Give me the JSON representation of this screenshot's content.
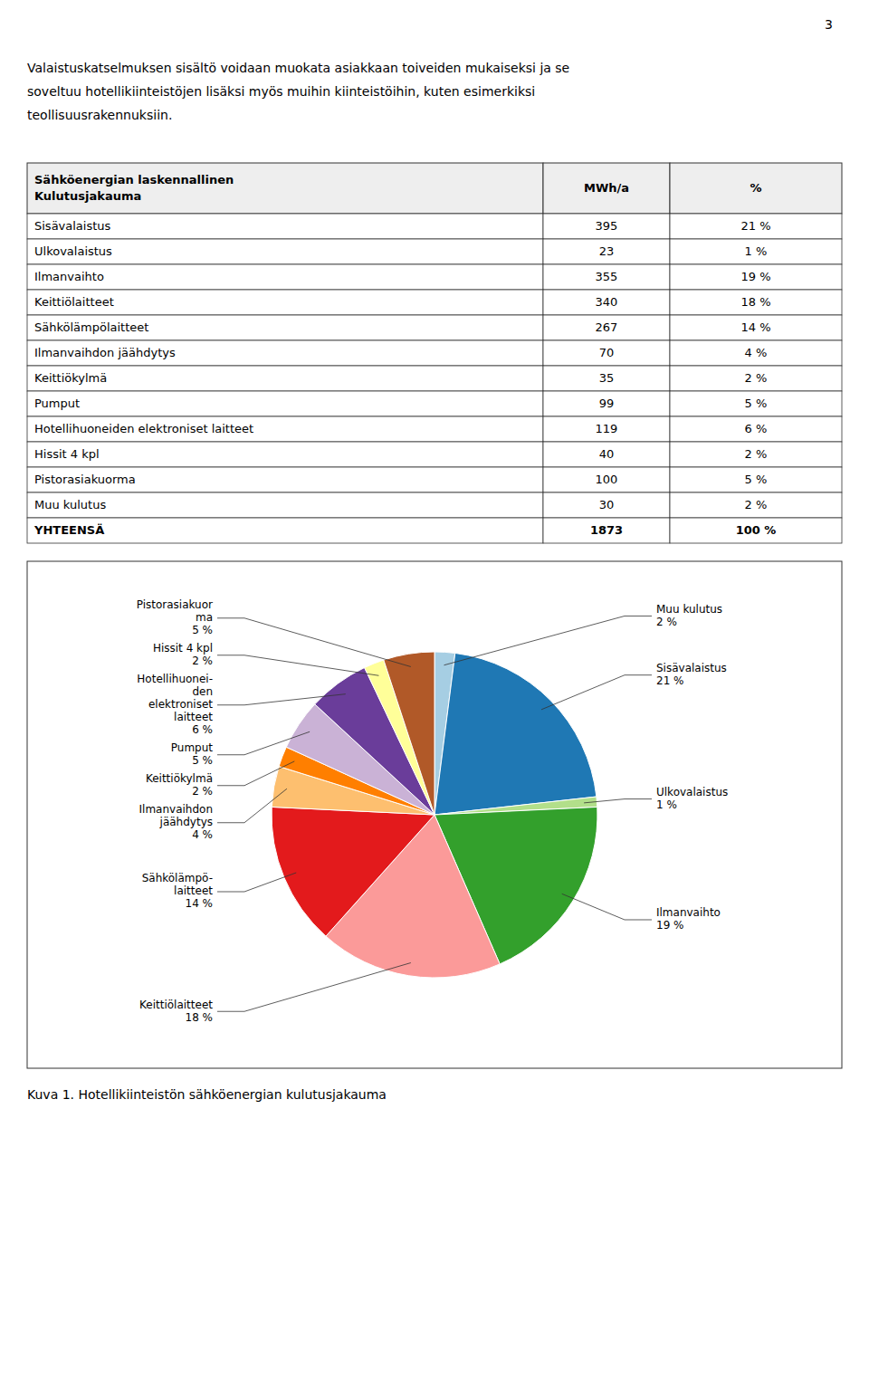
{
  "page_number": "3",
  "paragraph": [
    "Valaistuskatselmuksen sisältö voidaan muokata asiakkaan toiveiden mukaiseksi ja se",
    "soveltuu hotellikiinteistöjen lisäksi myös muihin kiinteistöihin, kuten esimerkiksi",
    "teollisuusrakennuksiin."
  ],
  "chart_data": [
    {
      "type": "table",
      "columns": [
        "Sähköenergian laskennallinen\nKulutusjakauma",
        "MWh/a",
        "%"
      ],
      "rows": [
        [
          "Sisävalaistus",
          "395",
          "21 %"
        ],
        [
          "Ulkovalaistus",
          "23",
          "1 %"
        ],
        [
          "Ilmanvaihto",
          "355",
          "19 %"
        ],
        [
          "Keittiölaitteet",
          "340",
          "18 %"
        ],
        [
          "Sähkölämpölaitteet",
          "267",
          "14 %"
        ],
        [
          "Ilmanvaihdon jäähdytys",
          "70",
          "4 %"
        ],
        [
          "Keittiökylmä",
          "35",
          "2 %"
        ],
        [
          "Pumput",
          "99",
          "5 %"
        ],
        [
          "Hotellihuoneiden elektroniset laitteet",
          "119",
          "6 %"
        ],
        [
          "Hissit 4 kpl",
          "40",
          "2 %"
        ],
        [
          "Pistorasiakuorma",
          "100",
          "5 %"
        ],
        [
          "Muu kulutus",
          "30",
          "2 %"
        ],
        [
          "YHTEENSÄ",
          "1873",
          "100 %"
        ]
      ]
    },
    {
      "type": "pie",
      "title": "Kuva 1. Hotellikiinteistön sähköenergian kulutusjakauma",
      "categories": [
        "Muu kulutus",
        "Sisävalaistus",
        "Ulkovalaistus",
        "Ilmanvaihto",
        "Keittiölaitteet",
        "Sähkölämpö-\nlaitteet",
        "Ilmanvaihdon\njäähdytys",
        "Keittiökylmä",
        "Pumput",
        "Hotellihuonei-\nden\nelektroniset\nlaitteet",
        "Hissit 4 kpl",
        "Pistorasiakuor\nma"
      ],
      "values": [
        2,
        21,
        1,
        19,
        18,
        14,
        4,
        2,
        5,
        6,
        2,
        5
      ],
      "value_labels": [
        "2 %",
        "21 %",
        "1 %",
        "19 %",
        "18 %",
        "14 %",
        "4 %",
        "2 %",
        "5 %",
        "6 %",
        "2 %",
        "5 %"
      ],
      "data_labels": true
    }
  ]
}
